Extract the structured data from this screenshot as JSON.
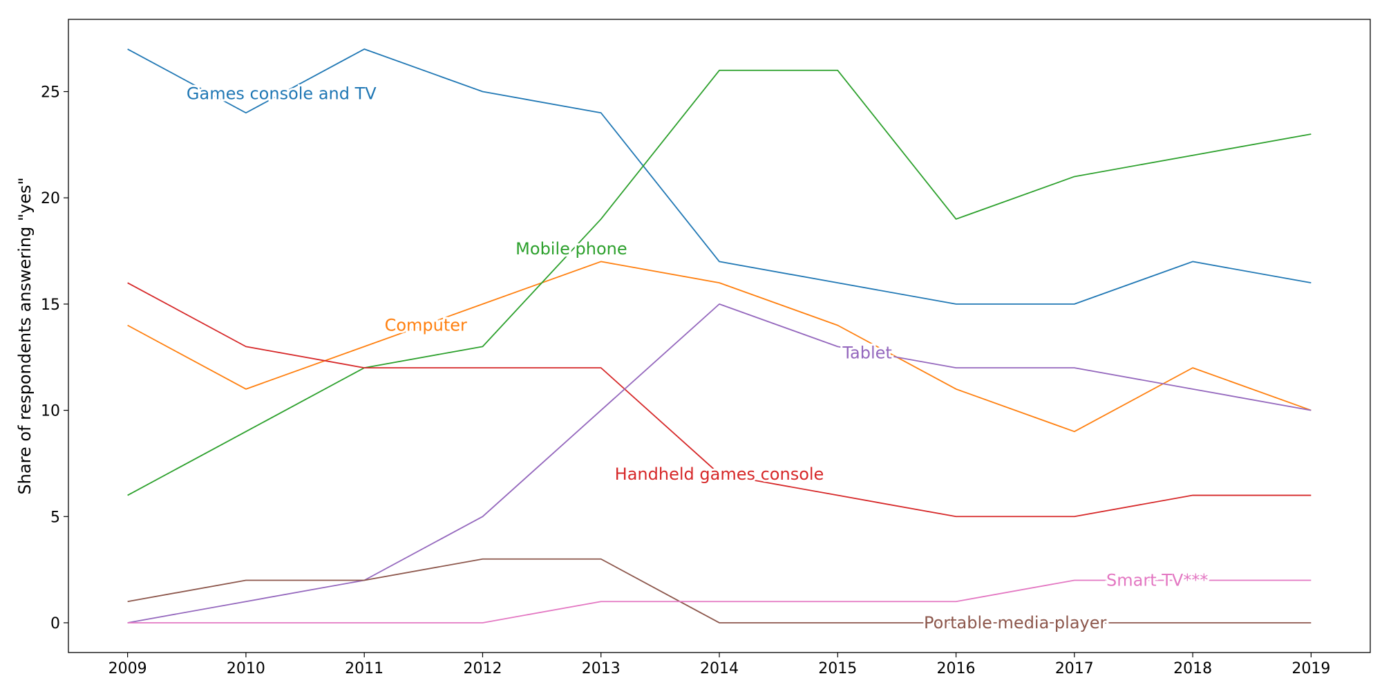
{
  "chart_data": {
    "type": "line",
    "title": "",
    "xlabel": "",
    "ylabel": "Share of respondents answering \"yes\"",
    "x": [
      2009,
      2010,
      2011,
      2012,
      2013,
      2014,
      2015,
      2016,
      2017,
      2018,
      2019
    ],
    "xlim": [
      2008.5,
      2019.5
    ],
    "ylim": [
      -1.4,
      28.4
    ],
    "yticks": [
      0,
      5,
      10,
      15,
      20,
      25
    ],
    "grid": false,
    "legend": "inline labels on lines",
    "series": [
      {
        "name": "Games console and TV",
        "color": "#1f77b4",
        "values": [
          27,
          24,
          27,
          25,
          24,
          17,
          16,
          15,
          15,
          17,
          16
        ],
        "label_at": [
          2010.3,
          24.9
        ]
      },
      {
        "name": "Computer",
        "color": "#ff7f0e",
        "values": [
          14,
          11,
          13,
          15,
          17,
          16,
          14,
          11,
          9,
          12,
          10
        ],
        "label_at": [
          2011.52,
          14.0
        ]
      },
      {
        "name": "Mobile phone",
        "color": "#2ca02c",
        "values": [
          6,
          9,
          12,
          13,
          19,
          26,
          26,
          19,
          21,
          22,
          23
        ],
        "label_at": [
          2012.75,
          17.6
        ]
      },
      {
        "name": "Handheld games console",
        "color": "#d62728",
        "values": [
          16,
          13,
          12,
          12,
          12,
          7,
          6,
          5,
          5,
          6,
          6
        ],
        "label_at": [
          2014.0,
          7.0
        ]
      },
      {
        "name": "Tablet",
        "color": "#9467bd",
        "values": [
          0,
          1,
          2,
          5,
          10,
          15,
          13,
          12,
          12,
          11,
          10
        ],
        "label_at": [
          2015.25,
          12.7
        ]
      },
      {
        "name": "Portable media player",
        "color": "#8c564b",
        "values": [
          1,
          2,
          2,
          3,
          3,
          0,
          0,
          0,
          0,
          0,
          0
        ],
        "label_at": [
          2016.5,
          0.0
        ]
      },
      {
        "name": "Smart TV***",
        "color": "#e377c2",
        "values": [
          0,
          0,
          0,
          0,
          1,
          1,
          1,
          1,
          2,
          2,
          2
        ],
        "label_at": [
          2017.7,
          2.0
        ]
      }
    ]
  }
}
